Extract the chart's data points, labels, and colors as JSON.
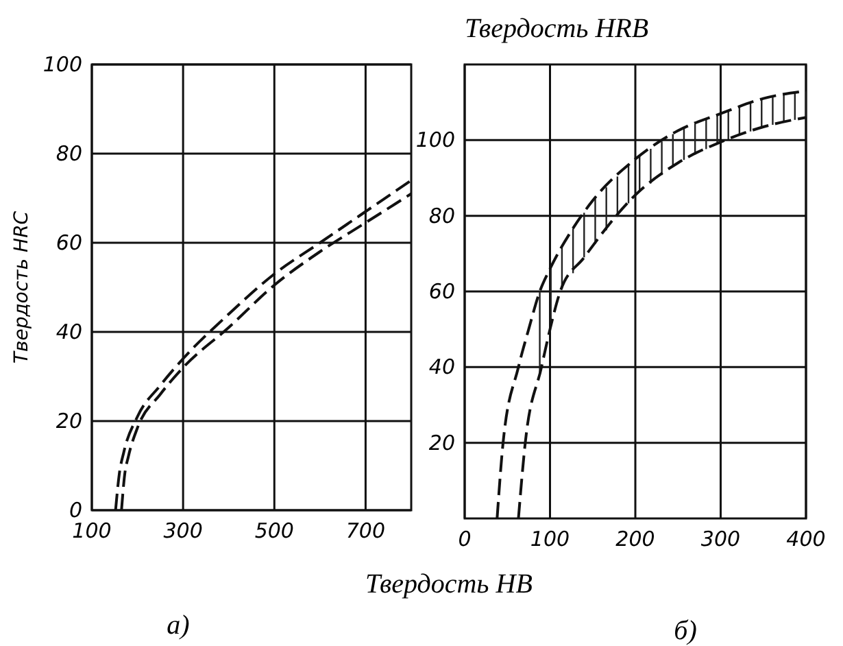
{
  "chart_data": [
    {
      "type": "line",
      "ylabel": "Твердость HRC",
      "xlim": [
        100,
        800
      ],
      "xticks": [
        100,
        300,
        500,
        700
      ],
      "ylim": [
        0,
        100
      ],
      "yticks": [
        0,
        20,
        40,
        60,
        80,
        100
      ],
      "grid": true,
      "line_style": "dashed",
      "annotations": [
        "а)"
      ],
      "series": [
        {
          "color": "#111111",
          "x": [
            152,
            160,
            170,
            200,
            250,
            300,
            400,
            500,
            600,
            700,
            800
          ],
          "values": [
            0,
            8,
            13,
            21,
            28,
            34,
            44,
            53,
            60,
            67,
            74
          ]
        },
        {
          "color": "#111111",
          "x": [
            165,
            172,
            180,
            200,
            250,
            300,
            400,
            500,
            600,
            700,
            800
          ],
          "values": [
            0,
            8,
            12,
            18.5,
            26,
            32,
            41,
            50.5,
            58,
            64.5,
            71
          ]
        }
      ]
    },
    {
      "type": "line",
      "ylabel": "Твердость HRB",
      "xlabel": "Твердость HB",
      "xlim": [
        0,
        400
      ],
      "xticks": [
        0,
        100,
        200,
        300,
        400
      ],
      "ylim": [
        0,
        120
      ],
      "yticks": [
        20,
        40,
        60,
        80,
        100
      ],
      "grid": true,
      "line_style": "dashed",
      "annotations": [
        "б)"
      ],
      "series": [
        {
          "color": "#111111",
          "x": [
            38,
            45,
            63,
            75,
            88,
            100,
            125,
            150,
            200,
            250,
            300,
            350,
            400
          ],
          "values": [
            0,
            20,
            40,
            50,
            60,
            66,
            76,
            84,
            95,
            102.5,
            107,
            111,
            113
          ]
        },
        {
          "color": "#111111",
          "x": [
            63,
            71,
            90,
            100,
            112,
            140,
            200,
            250,
            300,
            350,
            400
          ],
          "values": [
            0,
            20,
            40,
            50,
            60,
            69,
            85.5,
            94,
            99.5,
            103.5,
            106
          ]
        }
      ]
    }
  ]
}
